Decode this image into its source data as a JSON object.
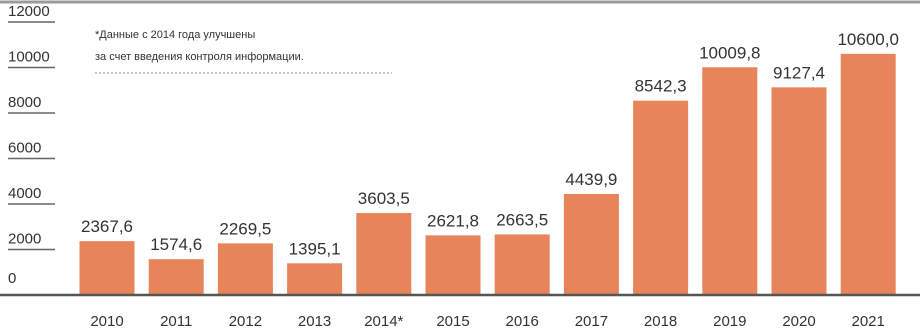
{
  "chart_data": {
    "type": "bar",
    "categories": [
      "2010",
      "2011",
      "2012",
      "2013",
      "2014*",
      "2015",
      "2016",
      "2017",
      "2018",
      "2019",
      "2020",
      "2021"
    ],
    "values": [
      2367.6,
      1574.6,
      2269.5,
      1395.1,
      3603.5,
      2621.8,
      2663.5,
      4439.9,
      8542.3,
      10009.8,
      9127.4,
      10600.0
    ],
    "value_labels": [
      "2367,6",
      "1574,6",
      "2269,5",
      "1395,1",
      "3603,5",
      "2621,8",
      "2663,5",
      "4439,9",
      "8542,3",
      "10009,8",
      "9127,4",
      "10600,0"
    ],
    "yticks": [
      0,
      2000,
      4000,
      6000,
      8000,
      10000,
      12000
    ],
    "ytick_labels": [
      "0",
      "2000",
      "4000",
      "6000",
      "8000",
      "10000",
      "12000"
    ],
    "ylim": [
      0,
      12000
    ],
    "title": "",
    "xlabel": "",
    "ylabel": "",
    "grid": false,
    "bar_color": "#E8845A",
    "text_color": "#333333",
    "axis_color": "#555555",
    "note": {
      "line1": "*Данные с 2014 года улучшены",
      "line2": "за счет введения контроля информации."
    }
  }
}
